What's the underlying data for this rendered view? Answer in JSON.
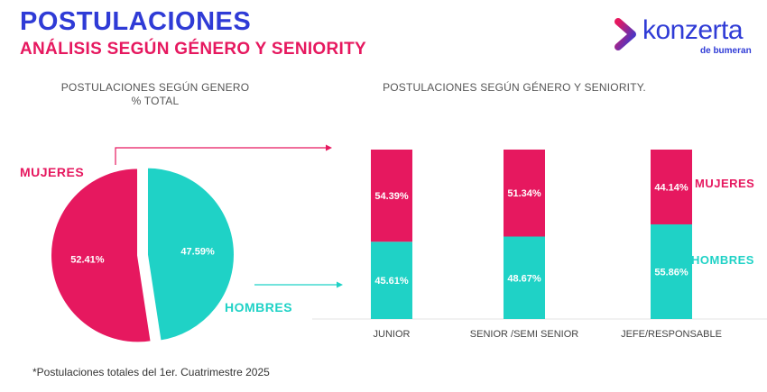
{
  "header": {
    "title": "POSTULACIONES",
    "subtitle": "ANÁLISIS SEGÚN GÉNERO Y SENIORITY"
  },
  "logo": {
    "name": "konzerta",
    "tagline": "de bumeran",
    "colors": {
      "primary": "#2f3bd6",
      "accent_pink": "#e6185f",
      "accent_teal": "#1fd2c6"
    }
  },
  "pie_section": {
    "title_line1": "POSTULACIONES SEGÚN GENERO",
    "title_line2": "% TOTAL"
  },
  "bar_section": {
    "title": "POSTULACIONES SEGÚN GÉNERO Y SENIORITY."
  },
  "labels": {
    "mujeres": "MUJERES",
    "hombres": "HOMBRES"
  },
  "footnote": "*Postulaciones totales del 1er. Cuatrimestre 2025",
  "colors": {
    "mujeres": "#e6185f",
    "hombres": "#1fd2c6",
    "title": "#2f3bd6"
  },
  "chart_data": [
    {
      "type": "pie",
      "title": "POSTULACIONES SEGÚN GENERO % TOTAL",
      "slices": [
        {
          "name": "MUJERES",
          "value": 52.41,
          "label": "52.41%",
          "color": "#e6185f"
        },
        {
          "name": "HOMBRES",
          "value": 47.59,
          "label": "47.59%",
          "color": "#1fd2c6"
        }
      ]
    },
    {
      "type": "bar",
      "stacked": true,
      "normalized": true,
      "title": "POSTULACIONES SEGÚN GÉNERO Y SENIORITY.",
      "categories": [
        "JUNIOR",
        "SENIOR /SEMI SENIOR",
        "JEFE/RESPONSABLE"
      ],
      "series": [
        {
          "name": "HOMBRES",
          "values": [
            45.61,
            48.67,
            55.86
          ],
          "labels": [
            "45.61%",
            "48.67%",
            "55.86%"
          ],
          "color": "#1fd2c6"
        },
        {
          "name": "MUJERES",
          "values": [
            54.39,
            51.34,
            44.14
          ],
          "labels": [
            "54.39%",
            "51.34%",
            "44.14%"
          ],
          "color": "#e6185f"
        }
      ],
      "ylim": [
        0,
        100
      ],
      "legend": "right"
    }
  ]
}
